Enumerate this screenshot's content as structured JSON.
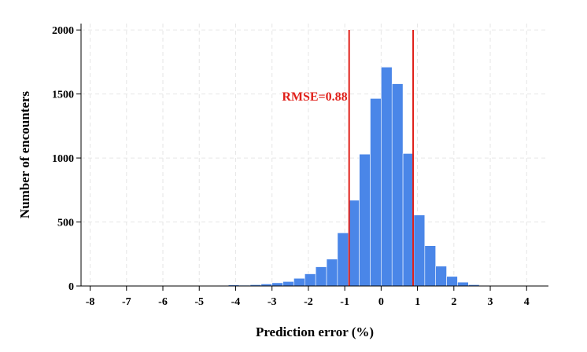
{
  "chart_data": {
    "type": "bar",
    "subtype": "histogram",
    "title": "",
    "xlabel": "Prediction error (%)",
    "ylabel": "Number of encounters",
    "xlim": [
      -8.25,
      4.6
    ],
    "ylim": [
      0,
      2050
    ],
    "x_ticks": [
      -8,
      -7,
      -6,
      -5,
      -4,
      -3,
      -2,
      -1,
      0,
      1,
      2,
      3,
      4
    ],
    "y_ticks": [
      0,
      500,
      1000,
      1500,
      2000
    ],
    "grid": true,
    "bin_width": 0.3,
    "bin_starts": [
      -8.1,
      -7.8,
      -7.5,
      -7.2,
      -6.9,
      -6.6,
      -6.3,
      -6.0,
      -5.7,
      -5.4,
      -5.1,
      -4.8,
      -4.5,
      -4.2,
      -3.9,
      -3.6,
      -3.3,
      -3.0,
      -2.7,
      -2.4,
      -2.1,
      -1.8,
      -1.5,
      -1.2,
      -0.9,
      -0.6,
      -0.3,
      0.0,
      0.3,
      0.6,
      0.9,
      1.2,
      1.5,
      1.8,
      2.1,
      2.4,
      2.7,
      3.0,
      3.3,
      3.6,
      3.9
    ],
    "values": [
      0,
      3,
      0,
      0,
      4,
      0,
      0,
      2,
      3,
      3,
      3,
      2,
      5,
      8,
      6,
      10,
      16,
      25,
      35,
      60,
      95,
      150,
      210,
      415,
      670,
      1030,
      1465,
      1710,
      1580,
      1035,
      555,
      315,
      155,
      75,
      30,
      10,
      4,
      3,
      2,
      2,
      1
    ],
    "bar_color": "#4a86e8",
    "reference_lines": [
      -0.88,
      0.88
    ],
    "reference_line_color": "#e0201a",
    "annotation": {
      "text": "RMSE=0.88",
      "color": "#e0201a"
    }
  }
}
